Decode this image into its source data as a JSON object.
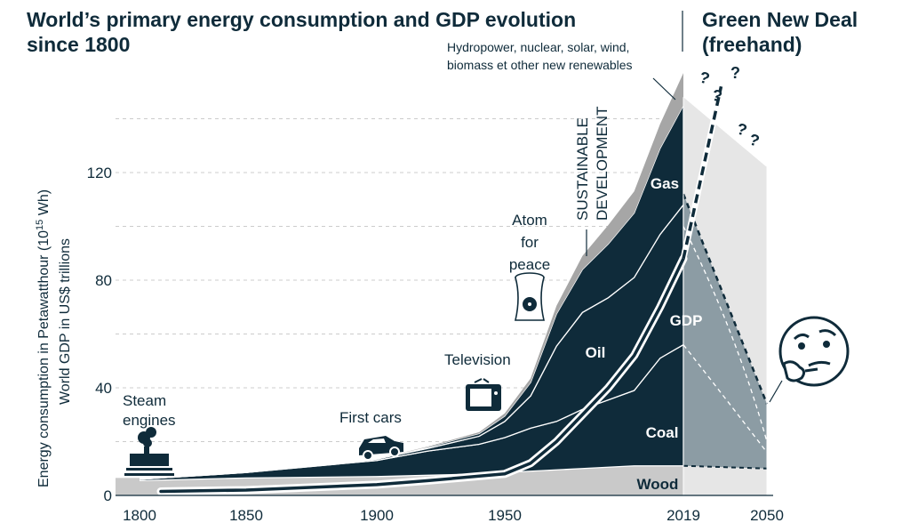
{
  "title_line1": "World’s primary energy consumption and GDP evolution",
  "title_line2": "since 1800",
  "side_title_line1": "Green New Deal",
  "side_title_line2": "(freehand)",
  "colors": {
    "wood": "#c9c9c9",
    "coal": "#0f2b3a",
    "renewables": "#a6a6a6",
    "projection_light": "#e6e6e6",
    "projection_mid": "#8c9ca4",
    "projection_dark": "#6f838d",
    "gdp": "#0f2b3a",
    "grid": "#cccccc"
  },
  "chart_data": {
    "type": "area",
    "ylabel_line1": "Energy consumption in Petawatthour (10",
    "ylabel_sup": "15",
    "ylabel_line1_end": " Wh)",
    "ylabel_line2": "World GDP in US$ trillions",
    "x_ticks": [
      "1800",
      "1850",
      "1900",
      "1950",
      "2019",
      "2050"
    ],
    "y_ticks": [
      0,
      40,
      80,
      120
    ],
    "ylim": [
      0,
      148
    ],
    "xlim": [
      1795,
      2055
    ],
    "grid": "dashed horizontal",
    "x": [
      1800,
      1850,
      1900,
      1920,
      1940,
      1950,
      1960,
      1970,
      1980,
      1990,
      2000,
      2010,
      2019
    ],
    "series": [
      {
        "name": "Wood",
        "values": [
          5.5,
          6.5,
          7,
          7.5,
          8,
          8.5,
          9,
          9.5,
          10,
          10.5,
          11,
          11,
          11
        ]
      },
      {
        "name": "Coal",
        "values": [
          0.5,
          2,
          6,
          9,
          11,
          13,
          16,
          18,
          22,
          25,
          28,
          40,
          45
        ]
      },
      {
        "name": "Oil",
        "values": [
          0,
          0,
          0.5,
          1,
          3,
          6,
          12,
          28,
          36,
          38,
          42,
          46,
          52
        ]
      },
      {
        "name": "Gas",
        "values": [
          0,
          0,
          0,
          0.5,
          1,
          2,
          5,
          12,
          16,
          20,
          24,
          32,
          37
        ]
      },
      {
        "name": "Hydropower, nuclear, solar, wind, biomass et other new renewables",
        "values": [
          0,
          0,
          0,
          0.2,
          0.5,
          1,
          1.5,
          3,
          5,
          7,
          8,
          9,
          12
        ]
      }
    ],
    "gdp": {
      "name": "GDP",
      "x": [
        1810,
        1850,
        1900,
        1920,
        1950,
        1960,
        1970,
        1980,
        1990,
        2000,
        2010,
        2019
      ],
      "values": [
        1.5,
        2,
        4,
        5.5,
        8,
        12,
        20,
        30,
        40,
        52,
        70,
        88
      ]
    },
    "labels": {
      "wood": "Wood",
      "coal": "Coal",
      "oil": "Oil",
      "gas": "Gas",
      "gdp": "GDP",
      "renewables_line1": "Hydropower, nuclear, solar, wind,",
      "renewables_line2": "biomass et other new renewables"
    },
    "annotations": {
      "steam1": "Steam",
      "steam2": "engines",
      "cars": "First cars",
      "tv": "Television",
      "atom1": "Atom",
      "atom2": "for",
      "atom3": "peace",
      "sd1": "SUSTAINABLE",
      "sd2": "DEVELOPMENT",
      "q": "?"
    },
    "projection": {
      "x": [
        2019,
        2050
      ],
      "total_light": [
        148,
        122
      ],
      "total_mid": [
        112,
        34
      ],
      "wood_end": 10
    }
  }
}
